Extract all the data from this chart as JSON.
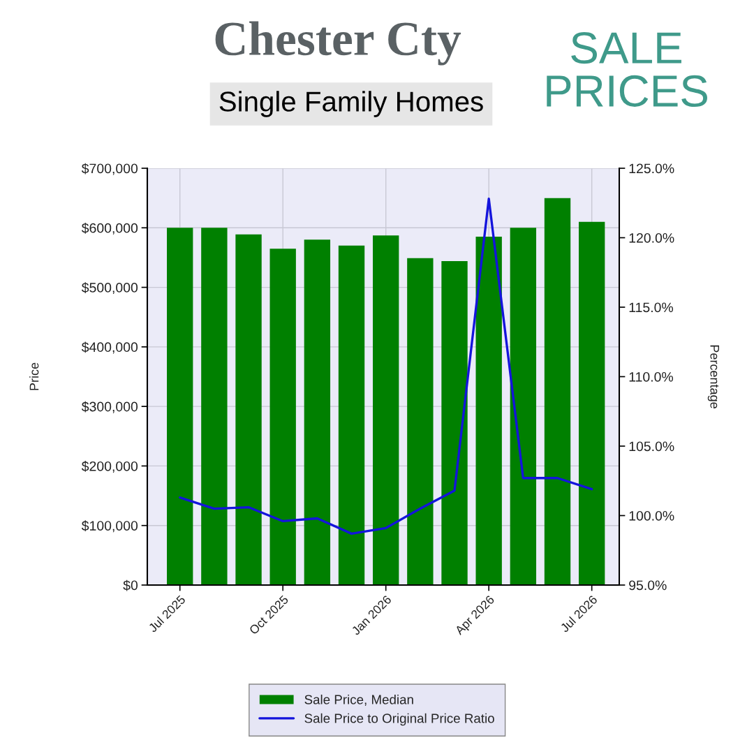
{
  "chart_data": {
    "type": "bar",
    "title": "Chester Cty",
    "subtitle": "Single Family Homes",
    "annotations": [
      "SALE PRICES"
    ],
    "ylabel": "Price",
    "y2label": "Percentage",
    "categories": [
      "Jul 2025",
      null,
      null,
      "Oct 2025",
      null,
      null,
      "Jan 2026",
      null,
      null,
      "Apr 2026",
      null,
      null,
      "Jul 2026"
    ],
    "series": [
      {
        "name": "Sale Price, Median",
        "color": "#008000",
        "values": [
          600000,
          600000,
          589000,
          565000,
          580000,
          570000,
          587000,
          549000,
          544000,
          585000,
          600000,
          650000,
          610000
        ]
      },
      {
        "name": "Sale Price to Original Price Ratio",
        "type": "line",
        "axis": "y2",
        "color": "#1414dc",
        "values": [
          101.3,
          100.5,
          100.6,
          99.6,
          99.8,
          98.7,
          99.1,
          100.5,
          101.8,
          122.8,
          102.7,
          102.7,
          101.9
        ]
      }
    ],
    "ylim": [
      0,
      700000
    ],
    "yticks": [
      {
        "value": 0,
        "label": "$0"
      },
      {
        "value": 100000,
        "label": "$100,000"
      },
      {
        "value": 200000,
        "label": "$200,000"
      },
      {
        "value": 300000,
        "label": "$300,000"
      },
      {
        "value": 400000,
        "label": "$400,000"
      },
      {
        "value": 500000,
        "label": "$500,000"
      },
      {
        "value": 600000,
        "label": "$600,000"
      },
      {
        "value": 700000,
        "label": "$700,000"
      }
    ],
    "y2lim": [
      95,
      125
    ],
    "y2ticks": [
      {
        "value": 95,
        "label": "95.0%"
      },
      {
        "value": 100,
        "label": "100.0%"
      },
      {
        "value": 105,
        "label": "105.0%"
      },
      {
        "value": 110,
        "label": "110.0%"
      },
      {
        "value": 115,
        "label": "115.0%"
      },
      {
        "value": 120,
        "label": "120.0%"
      },
      {
        "value": 125,
        "label": "125.0%"
      }
    ],
    "grid": true,
    "legend": "bottom"
  }
}
